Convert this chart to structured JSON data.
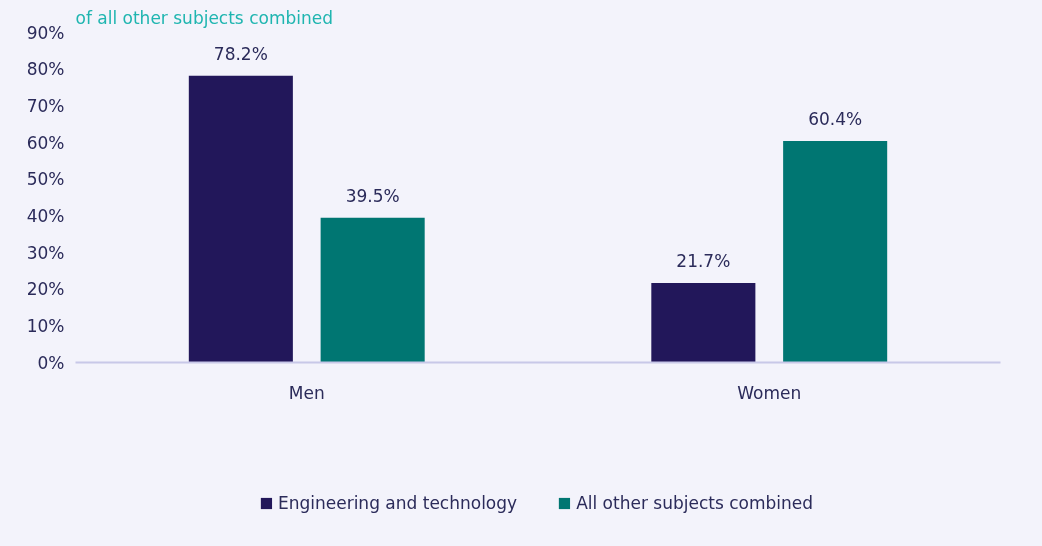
{
  "chart_data": {
    "type": "bar",
    "title": "of all other subjects combined",
    "categories": [
      "Men",
      "Women"
    ],
    "series": [
      {
        "name": "Engineering and technology",
        "color": "#22175a",
        "values": [
          78.2,
          21.7
        ],
        "value_labels": [
          "78.2%",
          "21.7%"
        ]
      },
      {
        "name": "All other subjects combined",
        "color": "#007672",
        "values": [
          39.5,
          60.4
        ],
        "value_labels": [
          "39.5%",
          "60.4%"
        ]
      }
    ],
    "ylim": [
      0,
      90
    ],
    "yticks": [
      {
        "value": 0,
        "label": "0%"
      },
      {
        "value": 10,
        "label": "10%"
      },
      {
        "value": 20,
        "label": "20%"
      },
      {
        "value": 30,
        "label": "30%"
      },
      {
        "value": 40,
        "label": "40%"
      },
      {
        "value": 50,
        "label": "50%"
      },
      {
        "value": 60,
        "label": "60%"
      },
      {
        "value": 70,
        "label": "70%"
      },
      {
        "value": 80,
        "label": "80%"
      },
      {
        "value": 90,
        "label": "90%"
      }
    ],
    "grid": false,
    "legend": "bottom"
  }
}
